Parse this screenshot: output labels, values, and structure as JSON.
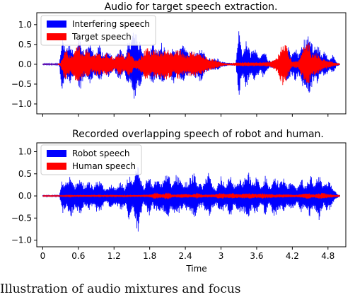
{
  "caption": "Illustration of audio mixtures and focus",
  "chart_data": [
    {
      "type": "line",
      "title": "Audio for target speech extraction.",
      "xlabel": "",
      "ylabel": "",
      "xlim": [
        -0.1,
        5.1
      ],
      "ylim": [
        -1.25,
        1.3
      ],
      "yticks": [
        {
          "v": -1.0,
          "label": "−1.0"
        },
        {
          "v": -0.5,
          "label": "−0.5"
        },
        {
          "v": 0.0,
          "label": "0.0"
        },
        {
          "v": 0.5,
          "label": "0.5"
        },
        {
          "v": 1.0,
          "label": "1.0"
        }
      ],
      "xticks": [
        0,
        0.6,
        1.2,
        1.8,
        2.4,
        3,
        3.6,
        4.2,
        4.8
      ],
      "show_xtick_labels": false,
      "legend_position": "upper-left",
      "series": [
        {
          "name": "Interfering speech",
          "color": "#0000ff",
          "envelope": [
            [
              0,
              0.02
            ],
            [
              0.28,
              0.02
            ],
            [
              0.32,
              0.75
            ],
            [
              0.4,
              0.45
            ],
            [
              0.45,
              0.5
            ],
            [
              0.55,
              0.3
            ],
            [
              0.62,
              0.7
            ],
            [
              0.7,
              0.35
            ],
            [
              0.8,
              0.5
            ],
            [
              0.88,
              0.28
            ],
            [
              0.95,
              0.55
            ],
            [
              1.02,
              0.22
            ],
            [
              1.1,
              0.35
            ],
            [
              1.2,
              0.15
            ],
            [
              1.3,
              0.45
            ],
            [
              1.38,
              0.2
            ],
            [
              1.42,
              0.5
            ],
            [
              1.5,
              0.75
            ],
            [
              1.55,
              1.0
            ],
            [
              1.6,
              0.65
            ],
            [
              1.66,
              0.6
            ],
            [
              1.7,
              0.2
            ],
            [
              1.78,
              0.3
            ],
            [
              1.85,
              0.55
            ],
            [
              1.92,
              0.35
            ],
            [
              2.0,
              0.55
            ],
            [
              2.1,
              0.3
            ],
            [
              2.2,
              0.5
            ],
            [
              2.28,
              0.3
            ],
            [
              2.35,
              0.5
            ],
            [
              2.45,
              0.3
            ],
            [
              2.55,
              0.35
            ],
            [
              2.65,
              0.45
            ],
            [
              2.75,
              0.2
            ],
            [
              2.82,
              0.15
            ],
            [
              2.9,
              0.15
            ],
            [
              2.95,
              0.15
            ],
            [
              3.0,
              0.07
            ],
            [
              3.1,
              0.04
            ],
            [
              3.25,
              0.03
            ],
            [
              3.3,
              0.85
            ],
            [
              3.36,
              0.3
            ],
            [
              3.42,
              0.6
            ],
            [
              3.5,
              0.3
            ],
            [
              3.58,
              0.45
            ],
            [
              3.65,
              0.2
            ],
            [
              3.72,
              0.4
            ],
            [
              3.8,
              0.1
            ],
            [
              3.9,
              0.1
            ],
            [
              4.0,
              0.15
            ],
            [
              4.08,
              0.3
            ],
            [
              4.12,
              0.5
            ],
            [
              4.18,
              0.25
            ],
            [
              4.25,
              0.45
            ],
            [
              4.3,
              0.25
            ],
            [
              4.38,
              0.6
            ],
            [
              4.45,
              0.7
            ],
            [
              4.5,
              0.8
            ],
            [
              4.55,
              0.4
            ],
            [
              4.62,
              0.55
            ],
            [
              4.7,
              0.25
            ],
            [
              4.75,
              0.35
            ],
            [
              4.82,
              0.15
            ],
            [
              4.88,
              0.25
            ],
            [
              4.95,
              0.05
            ],
            [
              5.0,
              0.02
            ]
          ]
        },
        {
          "name": "Target speech",
          "color": "#ff0000",
          "envelope": [
            [
              0,
              0.0
            ],
            [
              0.25,
              0.0
            ],
            [
              0.3,
              0.05
            ],
            [
              0.38,
              0.45
            ],
            [
              0.45,
              0.25
            ],
            [
              0.52,
              0.35
            ],
            [
              0.6,
              0.5
            ],
            [
              0.68,
              0.3
            ],
            [
              0.75,
              0.4
            ],
            [
              0.82,
              0.2
            ],
            [
              0.9,
              0.3
            ],
            [
              1.0,
              0.25
            ],
            [
              1.1,
              0.3
            ],
            [
              1.2,
              0.15
            ],
            [
              1.3,
              0.3
            ],
            [
              1.38,
              0.18
            ],
            [
              1.45,
              0.35
            ],
            [
              1.55,
              0.1
            ],
            [
              1.65,
              0.2
            ],
            [
              1.75,
              0.45
            ],
            [
              1.82,
              0.3
            ],
            [
              1.9,
              0.4
            ],
            [
              2.0,
              0.35
            ],
            [
              2.1,
              0.4
            ],
            [
              2.2,
              0.3
            ],
            [
              2.3,
              0.4
            ],
            [
              2.4,
              0.25
            ],
            [
              2.5,
              0.35
            ],
            [
              2.6,
              0.3
            ],
            [
              2.7,
              0.25
            ],
            [
              2.8,
              0.15
            ],
            [
              2.95,
              0.1
            ],
            [
              3.0,
              0.05
            ],
            [
              3.1,
              0.02
            ],
            [
              3.3,
              0.05
            ],
            [
              3.5,
              0.05
            ],
            [
              3.7,
              0.05
            ],
            [
              3.85,
              0.08
            ],
            [
              3.95,
              0.2
            ],
            [
              4.02,
              0.5
            ],
            [
              4.08,
              0.6
            ],
            [
              4.12,
              0.35
            ],
            [
              4.2,
              0.08
            ],
            [
              4.3,
              0.1
            ],
            [
              4.4,
              0.5
            ],
            [
              4.48,
              0.6
            ],
            [
              4.52,
              0.25
            ],
            [
              4.6,
              0.3
            ],
            [
              4.7,
              0.15
            ],
            [
              4.8,
              0.1
            ],
            [
              4.9,
              0.05
            ],
            [
              5.0,
              0.01
            ]
          ]
        }
      ]
    },
    {
      "type": "line",
      "title": "Recorded overlapping speech of robot and human.",
      "xlabel": "Time",
      "ylabel": "",
      "xlim": [
        -0.1,
        5.1
      ],
      "ylim": [
        -1.15,
        1.2
      ],
      "yticks": [
        {
          "v": -1.0,
          "label": "−1.0"
        },
        {
          "v": -0.5,
          "label": "−0.5"
        },
        {
          "v": 0.0,
          "label": "0.0"
        },
        {
          "v": 0.5,
          "label": "0.5"
        },
        {
          "v": 1.0,
          "label": "1.0"
        }
      ],
      "xticks": [
        0,
        0.6,
        1.2,
        1.8,
        2.4,
        3,
        3.6,
        4.2,
        4.8
      ],
      "show_xtick_labels": true,
      "legend_position": "upper-left",
      "series": [
        {
          "name": "Robot speech",
          "color": "#0000ff",
          "envelope": [
            [
              0,
              0.02
            ],
            [
              0.28,
              0.02
            ],
            [
              0.33,
              0.4
            ],
            [
              0.4,
              0.3
            ],
            [
              0.48,
              0.5
            ],
            [
              0.55,
              0.25
            ],
            [
              0.62,
              0.45
            ],
            [
              0.7,
              0.25
            ],
            [
              0.78,
              0.35
            ],
            [
              0.85,
              0.2
            ],
            [
              0.92,
              0.4
            ],
            [
              1.0,
              0.3
            ],
            [
              1.08,
              0.15
            ],
            [
              1.15,
              0.3
            ],
            [
              1.22,
              0.2
            ],
            [
              1.32,
              0.35
            ],
            [
              1.38,
              0.2
            ],
            [
              1.45,
              0.55
            ],
            [
              1.5,
              0.3
            ],
            [
              1.55,
              0.5
            ],
            [
              1.6,
              0.9
            ],
            [
              1.65,
              0.45
            ],
            [
              1.7,
              0.2
            ],
            [
              1.78,
              0.5
            ],
            [
              1.85,
              0.25
            ],
            [
              1.92,
              0.4
            ],
            [
              2.0,
              0.3
            ],
            [
              2.1,
              0.55
            ],
            [
              2.18,
              0.3
            ],
            [
              2.25,
              0.5
            ],
            [
              2.35,
              0.3
            ],
            [
              2.45,
              0.35
            ],
            [
              2.55,
              0.55
            ],
            [
              2.62,
              0.3
            ],
            [
              2.7,
              0.25
            ],
            [
              2.78,
              0.55
            ],
            [
              2.85,
              0.3
            ],
            [
              2.92,
              0.2
            ],
            [
              3.0,
              0.45
            ],
            [
              3.08,
              0.25
            ],
            [
              3.15,
              0.5
            ],
            [
              3.22,
              0.25
            ],
            [
              3.3,
              0.4
            ],
            [
              3.38,
              0.35
            ],
            [
              3.45,
              0.6
            ],
            [
              3.52,
              0.3
            ],
            [
              3.6,
              0.45
            ],
            [
              3.68,
              0.2
            ],
            [
              3.75,
              0.5
            ],
            [
              3.82,
              0.2
            ],
            [
              3.9,
              0.5
            ],
            [
              3.98,
              0.3
            ],
            [
              4.05,
              0.45
            ],
            [
              4.12,
              0.25
            ],
            [
              4.2,
              0.35
            ],
            [
              4.28,
              0.15
            ],
            [
              4.35,
              0.4
            ],
            [
              4.42,
              0.25
            ],
            [
              4.5,
              0.5
            ],
            [
              4.58,
              0.3
            ],
            [
              4.65,
              0.55
            ],
            [
              4.72,
              0.25
            ],
            [
              4.8,
              0.4
            ],
            [
              4.88,
              0.2
            ],
            [
              4.95,
              0.05
            ],
            [
              5.0,
              0.02
            ]
          ]
        },
        {
          "name": "Human speech",
          "color": "#ff0000",
          "envelope": [
            [
              0,
              0.01
            ],
            [
              0.3,
              0.01
            ],
            [
              0.5,
              0.02
            ],
            [
              1.0,
              0.02
            ],
            [
              1.5,
              0.02
            ],
            [
              1.8,
              0.03
            ],
            [
              1.9,
              0.08
            ],
            [
              2.0,
              0.04
            ],
            [
              2.1,
              0.08
            ],
            [
              2.2,
              0.03
            ],
            [
              2.4,
              0.05
            ],
            [
              2.5,
              0.03
            ],
            [
              2.6,
              0.07
            ],
            [
              2.7,
              0.03
            ],
            [
              2.9,
              0.04
            ],
            [
              3.0,
              0.07
            ],
            [
              3.1,
              0.04
            ],
            [
              3.2,
              0.07
            ],
            [
              3.3,
              0.05
            ],
            [
              3.45,
              0.06
            ],
            [
              3.6,
              0.05
            ],
            [
              3.7,
              0.06
            ],
            [
              3.9,
              0.04
            ],
            [
              4.0,
              0.04
            ],
            [
              4.3,
              0.03
            ],
            [
              4.45,
              0.07
            ],
            [
              4.55,
              0.04
            ],
            [
              4.7,
              0.07
            ],
            [
              4.8,
              0.05
            ],
            [
              4.95,
              0.02
            ],
            [
              5.0,
              0.01
            ]
          ]
        }
      ]
    }
  ]
}
